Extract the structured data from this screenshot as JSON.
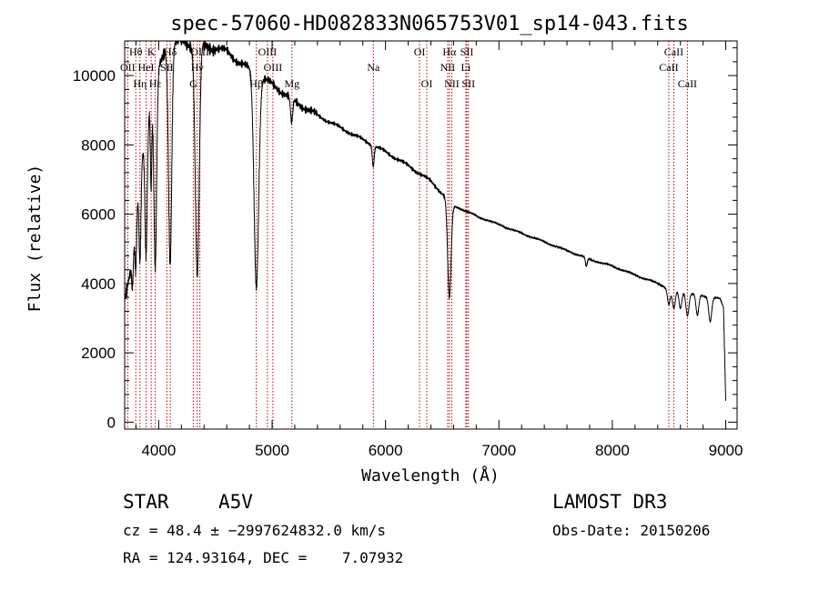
{
  "chart_data": {
    "type": "line",
    "title": "spec-57060-HD082833N065753V01_sp14-043.fits",
    "xlabel": "Wavelength (Å)",
    "ylabel": "Flux (relative)",
    "xlim": [
      3700,
      9100
    ],
    "ylim": [
      -200,
      11000
    ],
    "xticks": [
      4000,
      5000,
      6000,
      7000,
      8000,
      9000
    ],
    "yticks": [
      0,
      2000,
      4000,
      6000,
      8000,
      10000
    ],
    "series": [
      {
        "name": "spectrum",
        "continuum": [
          [
            3700,
            3600
          ],
          [
            3750,
            4300
          ],
          [
            3800,
            6200
          ],
          [
            3850,
            7700
          ],
          [
            3900,
            8700
          ],
          [
            3950,
            9500
          ],
          [
            4000,
            10200
          ],
          [
            4050,
            10700
          ],
          [
            4100,
            10900
          ],
          [
            4200,
            11000
          ],
          [
            4300,
            10900
          ],
          [
            4400,
            10850
          ],
          [
            4500,
            10800
          ],
          [
            4600,
            10700
          ],
          [
            4700,
            10400
          ],
          [
            4800,
            10200
          ],
          [
            4900,
            9950
          ],
          [
            5000,
            9750
          ],
          [
            5100,
            9500
          ],
          [
            5200,
            9250
          ],
          [
            5400,
            8850
          ],
          [
            5600,
            8500
          ],
          [
            5800,
            8150
          ],
          [
            6000,
            7800
          ],
          [
            6200,
            7400
          ],
          [
            6400,
            6950
          ],
          [
            6600,
            6250
          ],
          [
            6800,
            5950
          ],
          [
            7000,
            5700
          ],
          [
            7200,
            5450
          ],
          [
            7400,
            5200
          ],
          [
            7600,
            4950
          ],
          [
            7800,
            4700
          ],
          [
            8000,
            4500
          ],
          [
            8200,
            4250
          ],
          [
            8400,
            4000
          ],
          [
            8500,
            3850
          ],
          [
            8600,
            3780
          ],
          [
            8700,
            3700
          ],
          [
            8800,
            3640
          ],
          [
            8900,
            3600
          ],
          [
            8950,
            3550
          ],
          [
            8980,
            3300
          ],
          [
            9000,
            600
          ]
        ],
        "absorption_lines": [
          [
            3770,
            1200,
            8
          ],
          [
            3798,
            1800,
            8
          ],
          [
            3835,
            2600,
            9
          ],
          [
            3889,
            3600,
            10
          ],
          [
            3933,
            2500,
            6
          ],
          [
            3970,
            5400,
            12
          ],
          [
            4101,
            6300,
            14
          ],
          [
            4340,
            6700,
            17
          ],
          [
            4861,
            6100,
            20
          ],
          [
            5172,
            700,
            10
          ],
          [
            5892,
            600,
            8
          ],
          [
            6563,
            2800,
            15
          ],
          [
            7771,
            250,
            8
          ],
          [
            8498,
            450,
            12
          ],
          [
            8542,
            550,
            13
          ],
          [
            8600,
            500,
            12
          ],
          [
            8662,
            650,
            13
          ],
          [
            8750,
            600,
            12
          ],
          [
            8863,
            700,
            13
          ]
        ]
      }
    ],
    "line_markers": [
      {
        "label": "Hθ",
        "wavelength": 3798,
        "row": 1
      },
      {
        "label": "OII",
        "wavelength": 3727,
        "row": 2
      },
      {
        "label": "Hη",
        "wavelength": 3835,
        "row": 3
      },
      {
        "label": "K",
        "wavelength": 3934,
        "row": 1
      },
      {
        "label": "HeI",
        "wavelength": 3889,
        "row": 2
      },
      {
        "label": "Hε",
        "wavelength": 3970,
        "row": 3
      },
      {
        "label": "Hδ",
        "wavelength": 4102,
        "row": 1
      },
      {
        "label": "SII",
        "wavelength": 4072,
        "row": 2
      },
      {
        "label": "OIII",
        "wavelength": 4363,
        "row": 1
      },
      {
        "label": "Hγ",
        "wavelength": 4340,
        "row": 2
      },
      {
        "label": "G",
        "wavelength": 4305,
        "row": 3
      },
      {
        "label": "OIII",
        "wavelength": 4959,
        "row": 1
      },
      {
        "label": "OIII",
        "wavelength": 5007,
        "row": 2
      },
      {
        "label": "Hβ",
        "wavelength": 4861,
        "row": 3
      },
      {
        "label": "Mg",
        "wavelength": 5175,
        "row": 3
      },
      {
        "label": "Na",
        "wavelength": 5893,
        "row": 2
      },
      {
        "label": "OI",
        "wavelength": 6300,
        "row": 1
      },
      {
        "label": "OI",
        "wavelength": 6364,
        "row": 3
      },
      {
        "label": "Hα",
        "wavelength": 6563,
        "row": 1
      },
      {
        "label": "NII",
        "wavelength": 6548,
        "row": 2
      },
      {
        "label": "NII",
        "wavelength": 6584,
        "row": 3
      },
      {
        "label": "SII",
        "wavelength": 6717,
        "row": 1
      },
      {
        "label": "Li",
        "wavelength": 6708,
        "row": 2
      },
      {
        "label": "SII",
        "wavelength": 6731,
        "row": 3
      },
      {
        "label": "CaII",
        "wavelength": 8542,
        "row": 1
      },
      {
        "label": "CaII",
        "wavelength": 8498,
        "row": 2
      },
      {
        "label": "CaII",
        "wavelength": 8662,
        "row": 3
      }
    ]
  },
  "info": {
    "class": "STAR",
    "subclass": "A5V",
    "survey": "LAMOST DR3",
    "cz": "cz = 48.4 ± −2997624832.0 km/s",
    "obs_date": "Obs-Date: 20150206",
    "coords": "RA = 124.93164, DEC =    7.07932"
  },
  "colors": {
    "spectrum": "#000000",
    "marker": "#c00000",
    "axis": "#000000"
  }
}
